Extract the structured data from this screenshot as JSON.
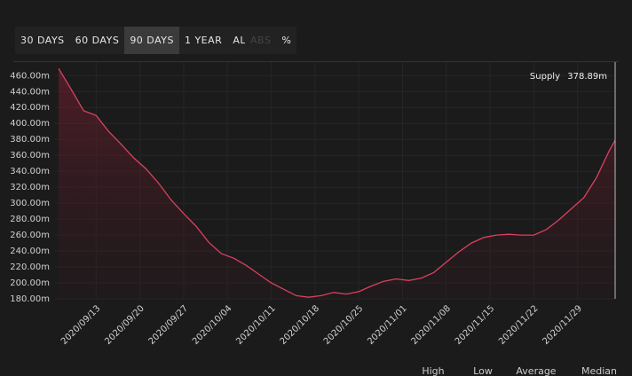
{
  "ui": {
    "ranges": [
      "30 DAYS",
      "60 DAYS",
      "90 DAYS",
      "1 YEAR",
      "ALL"
    ],
    "selected_range": 2,
    "modes": [
      "ABS",
      "%"
    ],
    "selected_mode": 1,
    "stats": [
      "High",
      "Low",
      "Average",
      "Median"
    ]
  },
  "chart_data": {
    "type": "area",
    "x": [
      "2020/09/07",
      "2020/09/09",
      "2020/09/11",
      "2020/09/13",
      "2020/09/15",
      "2020/09/17",
      "2020/09/19",
      "2020/09/21",
      "2020/09/23",
      "2020/09/25",
      "2020/09/27",
      "2020/09/29",
      "2020/10/01",
      "2020/10/03",
      "2020/10/05",
      "2020/10/07",
      "2020/10/09",
      "2020/10/11",
      "2020/10/13",
      "2020/10/15",
      "2020/10/17",
      "2020/10/19",
      "2020/10/21",
      "2020/10/23",
      "2020/10/25",
      "2020/10/27",
      "2020/10/29",
      "2020/10/31",
      "2020/11/02",
      "2020/11/04",
      "2020/11/06",
      "2020/11/08",
      "2020/11/10",
      "2020/11/12",
      "2020/11/14",
      "2020/11/16",
      "2020/11/18",
      "2020/11/20",
      "2020/11/22",
      "2020/11/24",
      "2020/11/26",
      "2020/11/28",
      "2020/11/30",
      "2020/12/02",
      "2020/12/04",
      "2020/12/05"
    ],
    "series": [
      {
        "name": "Supply",
        "color": "#d9415e",
        "values": [
          469,
          443,
          416,
          410,
          390,
          374,
          357,
          343,
          325,
          304,
          287,
          271,
          251,
          237,
          231,
          222,
          211,
          200,
          192,
          184,
          182,
          184,
          188,
          186,
          189,
          196,
          202,
          205,
          203,
          206,
          213,
          226,
          239,
          250,
          257,
          260,
          261,
          260,
          260,
          267,
          279,
          293,
          307,
          332,
          365,
          378.89
        ],
        "latest_label": "378.89m"
      }
    ],
    "xlim": [
      "2020/09/07",
      "2020/12/05"
    ],
    "xticks": [
      "2020/09/13",
      "2020/09/20",
      "2020/09/27",
      "2020/10/04",
      "2020/10/11",
      "2020/10/18",
      "2020/10/25",
      "2020/11/01",
      "2020/11/08",
      "2020/11/15",
      "2020/11/22",
      "2020/11/29"
    ],
    "ylim": [
      180,
      477
    ],
    "yticks": [
      {
        "value": 180,
        "label": "180.00m"
      },
      {
        "value": 200,
        "label": "200.00m"
      },
      {
        "value": 220,
        "label": "220.00m"
      },
      {
        "value": 240,
        "label": "240.00m"
      },
      {
        "value": 260,
        "label": "260.00m"
      },
      {
        "value": 280,
        "label": "280.00m"
      },
      {
        "value": 300,
        "label": "300.00m"
      },
      {
        "value": 320,
        "label": "320.00m"
      },
      {
        "value": 340,
        "label": "340.00m"
      },
      {
        "value": 360,
        "label": "360.00m"
      },
      {
        "value": 380,
        "label": "380.00m"
      },
      {
        "value": 400,
        "label": "400.00m"
      },
      {
        "value": 420,
        "label": "420.00m"
      },
      {
        "value": 440,
        "label": "440.00m"
      },
      {
        "value": 460,
        "label": "460.00m"
      }
    ],
    "grid": true
  }
}
